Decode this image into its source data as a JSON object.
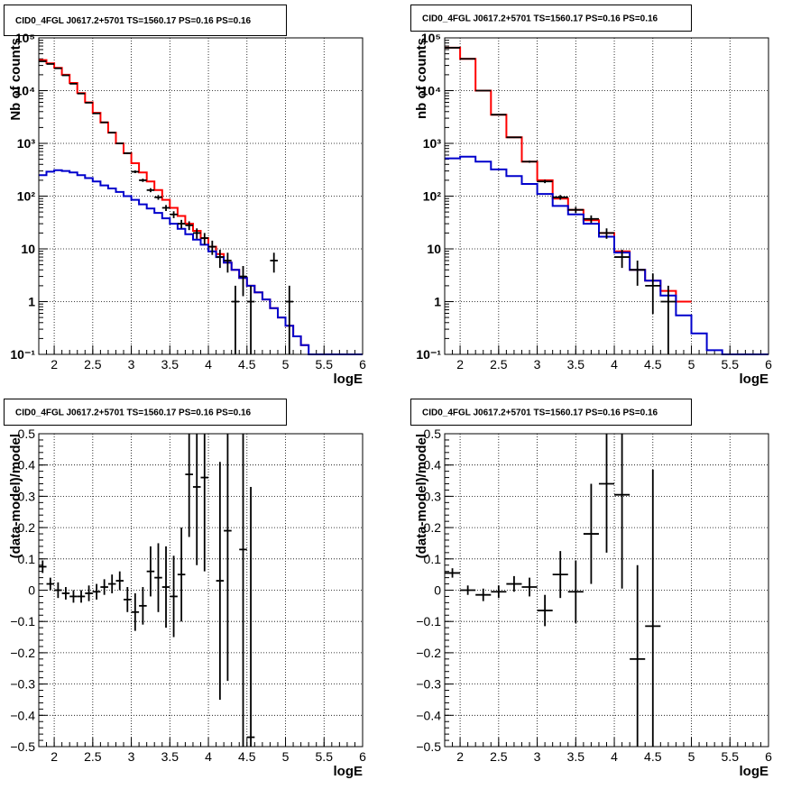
{
  "colors": {
    "data": "#000000",
    "total_model": "#ff0000",
    "source_model": "#0000cc"
  },
  "chart_data": [
    {
      "type": "line",
      "panel": "top-left",
      "title": "CID0_4FGL J0617.2+5701 TS=1560.17 PS=0.16 PS=0.16",
      "xlabel": "logE",
      "ylabel": "Nb of counts",
      "xlim": [
        1.8,
        6.0
      ],
      "ylim": [
        0.1,
        100000
      ],
      "yscale": "log",
      "grid": true,
      "x_ticks": [
        "2",
        "2.5",
        "3",
        "3.5",
        "4",
        "4.5",
        "5",
        "5.5",
        "6"
      ],
      "y_ticks": [
        "10⁻¹",
        "1",
        "10",
        "10²",
        "10³",
        "10⁴",
        "10⁵"
      ],
      "bin_edges": [
        1.8,
        1.9,
        2.0,
        2.1,
        2.2,
        2.3,
        2.4,
        2.5,
        2.6,
        2.7,
        2.8,
        2.9,
        3.0,
        3.1,
        3.2,
        3.3,
        3.4,
        3.5,
        3.6,
        3.7,
        3.8,
        3.9,
        4.0,
        4.1,
        4.2,
        4.3,
        4.4,
        4.5,
        4.6,
        4.7,
        4.8,
        4.9,
        5.0,
        5.1,
        5.2,
        5.3,
        5.4,
        5.5,
        5.6,
        5.7,
        5.8,
        5.9,
        6.0
      ],
      "series": [
        {
          "role": "total model",
          "color": "#ff0000",
          "values": [
            38000,
            33000,
            27000,
            20000,
            14000,
            9000,
            6000,
            3800,
            2500,
            1600,
            1000,
            650,
            420,
            280,
            190,
            130,
            85,
            60,
            42,
            30,
            22,
            16,
            11,
            8,
            5.5,
            4,
            2.8,
            2,
            1.5,
            1.1,
            0.75,
            0.5,
            0.35,
            0.22,
            0.15
          ]
        },
        {
          "role": "source model",
          "color": "#0000cc",
          "values": [
            250,
            290,
            310,
            300,
            280,
            250,
            220,
            190,
            160,
            140,
            120,
            100,
            85,
            70,
            58,
            48,
            38,
            30,
            24,
            19,
            15,
            12,
            9,
            7,
            5.5,
            4,
            2.8,
            2,
            1.5,
            1.1,
            0.75,
            0.5,
            0.35,
            0.22,
            0.15,
            0.1,
            0.1,
            0.1,
            0.1,
            0.1,
            0.1,
            0.1
          ]
        },
        {
          "role": "data",
          "points": [
            {
              "x": 1.85,
              "y": 36000
            },
            {
              "x": 1.95,
              "y": 32000
            },
            {
              "x": 2.05,
              "y": 26500
            },
            {
              "x": 2.15,
              "y": 19500
            },
            {
              "x": 2.25,
              "y": 13500
            },
            {
              "x": 2.35,
              "y": 8800
            },
            {
              "x": 2.45,
              "y": 5900
            },
            {
              "x": 2.55,
              "y": 3700
            },
            {
              "x": 2.65,
              "y": 2500
            },
            {
              "x": 2.75,
              "y": 1600
            },
            {
              "x": 2.85,
              "y": 1000
            },
            {
              "x": 2.95,
              "y": 650
            },
            {
              "x": 3.05,
              "y": 290
            },
            {
              "x": 3.15,
              "y": 200
            },
            {
              "x": 3.25,
              "y": 130
            },
            {
              "x": 3.35,
              "y": 95
            },
            {
              "x": 3.45,
              "y": 60
            },
            {
              "x": 3.55,
              "y": 45
            },
            {
              "x": 3.65,
              "y": 30
            },
            {
              "x": 3.75,
              "y": 28
            },
            {
              "x": 3.85,
              "y": 20
            },
            {
              "x": 3.95,
              "y": 16
            },
            {
              "x": 4.05,
              "y": 11
            },
            {
              "x": 4.15,
              "y": 7
            },
            {
              "x": 4.25,
              "y": 6
            },
            {
              "x": 4.35,
              "y": 1
            },
            {
              "x": 4.45,
              "y": 3
            },
            {
              "x": 4.55,
              "y": 1
            },
            {
              "x": 4.85,
              "y": 6
            },
            {
              "x": 5.05,
              "y": 1
            }
          ]
        }
      ]
    },
    {
      "type": "line",
      "panel": "top-right",
      "title": "CID0_4FGL J0617.2+5701 TS=1560.17 PS=0.16 PS=0.16",
      "xlabel": "logE",
      "ylabel": "nb of counts",
      "xlim": [
        1.8,
        6.0
      ],
      "ylim": [
        0.1,
        100000
      ],
      "yscale": "log",
      "grid": true,
      "x_ticks": [
        "2",
        "2.5",
        "3",
        "3.5",
        "4",
        "4.5",
        "5",
        "5.5",
        "6"
      ],
      "y_ticks": [
        "10⁻¹",
        "1",
        "10",
        "10²",
        "10³",
        "10⁴",
        "10⁵"
      ],
      "bin_edges": [
        1.8,
        2.0,
        2.2,
        2.4,
        2.6,
        2.8,
        3.0,
        3.2,
        3.4,
        3.6,
        3.8,
        4.0,
        4.2,
        4.4,
        4.6,
        4.8,
        5.0,
        5.2,
        5.4,
        5.6,
        5.8,
        6.0
      ],
      "series": [
        {
          "role": "total model",
          "color": "#ff0000",
          "values": [
            65000,
            40000,
            10000,
            3500,
            1300,
            450,
            200,
            90,
            55,
            35,
            20,
            9,
            4,
            2.5,
            1.6,
            1
          ]
        },
        {
          "role": "source model",
          "color": "#0000cc",
          "values": [
            520,
            560,
            450,
            320,
            240,
            170,
            110,
            65,
            45,
            30,
            17,
            8.5,
            4,
            2.5,
            1.3,
            0.55,
            0.25,
            0.12,
            0.1,
            0.1,
            0.1
          ]
        },
        {
          "role": "data",
          "points": [
            {
              "x": 1.9,
              "y": 65000
            },
            {
              "x": 2.1,
              "y": 40000
            },
            {
              "x": 2.3,
              "y": 10000
            },
            {
              "x": 2.5,
              "y": 3500
            },
            {
              "x": 2.7,
              "y": 1300
            },
            {
              "x": 2.9,
              "y": 450
            },
            {
              "x": 3.1,
              "y": 190
            },
            {
              "x": 3.3,
              "y": 95
            },
            {
              "x": 3.5,
              "y": 55
            },
            {
              "x": 3.7,
              "y": 37
            },
            {
              "x": 3.9,
              "y": 20
            },
            {
              "x": 4.1,
              "y": 7
            },
            {
              "x": 4.3,
              "y": 4
            },
            {
              "x": 4.5,
              "y": 2
            },
            {
              "x": 4.7,
              "y": 1
            }
          ]
        }
      ]
    },
    {
      "type": "scatter",
      "panel": "bottom-left",
      "title": "CID0_4FGL J0617.2+5701 TS=1560.17 PS=0.16 PS=0.16",
      "xlabel": "logE",
      "ylabel": "(data-model)/model",
      "xlim": [
        1.8,
        6.0
      ],
      "ylim": [
        -0.5,
        0.5
      ],
      "grid": true,
      "x_ticks": [
        "2",
        "2.5",
        "3",
        "3.5",
        "4",
        "4.5",
        "5",
        "5.5",
        "6"
      ],
      "y_ticks": [
        "−0.5",
        "−0.4",
        "−0.3",
        "−0.2",
        "−0.1",
        "0",
        "0.1",
        "0.2",
        "0.3",
        "0.4",
        "0.5"
      ],
      "series": [
        {
          "role": "data",
          "points": [
            {
              "x": 1.85,
              "y": 0.075,
              "err": 0.02
            },
            {
              "x": 1.95,
              "y": 0.02,
              "err": 0.02
            },
            {
              "x": 2.05,
              "y": 0.0,
              "err": 0.025
            },
            {
              "x": 2.15,
              "y": -0.01,
              "err": 0.02
            },
            {
              "x": 2.25,
              "y": -0.02,
              "err": 0.02
            },
            {
              "x": 2.35,
              "y": -0.02,
              "err": 0.02
            },
            {
              "x": 2.45,
              "y": -0.01,
              "err": 0.025
            },
            {
              "x": 2.55,
              "y": -0.005,
              "err": 0.025
            },
            {
              "x": 2.65,
              "y": 0.01,
              "err": 0.025
            },
            {
              "x": 2.75,
              "y": 0.02,
              "err": 0.03
            },
            {
              "x": 2.85,
              "y": 0.03,
              "err": 0.03
            },
            {
              "x": 2.95,
              "y": -0.03,
              "err": 0.04
            },
            {
              "x": 3.05,
              "y": -0.07,
              "err": 0.06
            },
            {
              "x": 3.15,
              "y": -0.05,
              "err": 0.06
            },
            {
              "x": 3.25,
              "y": 0.06,
              "err": 0.08
            },
            {
              "x": 3.35,
              "y": 0.04,
              "err": 0.11
            },
            {
              "x": 3.45,
              "y": 0.01,
              "err": 0.13
            },
            {
              "x": 3.55,
              "y": -0.02,
              "err": 0.13
            },
            {
              "x": 3.65,
              "y": 0.05,
              "err": 0.15
            },
            {
              "x": 3.75,
              "y": 0.37,
              "err": 0.2
            },
            {
              "x": 3.85,
              "y": 0.33,
              "err": 0.25
            },
            {
              "x": 3.95,
              "y": 0.36,
              "err": 0.3
            },
            {
              "x": 4.15,
              "y": 0.03,
              "err": 0.38
            },
            {
              "x": 4.25,
              "y": 0.19,
              "err": 0.48
            },
            {
              "x": 4.45,
              "y": 0.13,
              "err": 0.7
            },
            {
              "x": 4.55,
              "y": -0.47,
              "err": 0.8
            }
          ]
        }
      ]
    },
    {
      "type": "scatter",
      "panel": "bottom-right",
      "title": "CID0_4FGL J0617.2+5701 TS=1560.17 PS=0.16 PS=0.16",
      "xlabel": "logE",
      "ylabel": "(data-model)/model",
      "xlim": [
        1.8,
        6.0
      ],
      "ylim": [
        -0.5,
        0.5
      ],
      "grid": true,
      "x_ticks": [
        "2",
        "2.5",
        "3",
        "3.5",
        "4",
        "4.5",
        "5",
        "5.5",
        "6"
      ],
      "y_ticks": [
        "−0.5",
        "−0.4",
        "−0.3",
        "−0.2",
        "−0.1",
        "0",
        "0.1",
        "0.2",
        "0.3",
        "0.4",
        "0.5"
      ],
      "series": [
        {
          "role": "data",
          "points": [
            {
              "x": 1.9,
              "y": 0.055,
              "err": 0.015
            },
            {
              "x": 2.1,
              "y": 0.0,
              "err": 0.015
            },
            {
              "x": 2.3,
              "y": -0.015,
              "err": 0.02
            },
            {
              "x": 2.5,
              "y": -0.005,
              "err": 0.02
            },
            {
              "x": 2.7,
              "y": 0.02,
              "err": 0.025
            },
            {
              "x": 2.9,
              "y": 0.01,
              "err": 0.03
            },
            {
              "x": 3.1,
              "y": -0.065,
              "err": 0.05
            },
            {
              "x": 3.3,
              "y": 0.05,
              "err": 0.075
            },
            {
              "x": 3.5,
              "y": -0.005,
              "err": 0.1
            },
            {
              "x": 3.7,
              "y": 0.18,
              "err": 0.16
            },
            {
              "x": 3.9,
              "y": 0.34,
              "err": 0.22
            },
            {
              "x": 4.1,
              "y": 0.305,
              "err": 0.3
            },
            {
              "x": 4.3,
              "y": -0.22,
              "err": 0.3
            },
            {
              "x": 4.5,
              "y": -0.115,
              "err": 0.5
            }
          ]
        }
      ]
    }
  ]
}
